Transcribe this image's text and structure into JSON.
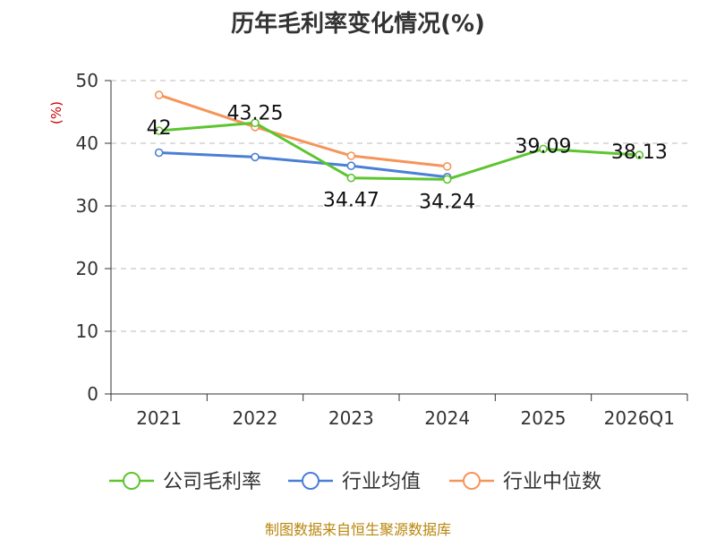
{
  "chart_data": {
    "type": "line",
    "title": "历年毛利率变化情况(%)",
    "ylabel": "(%)",
    "xlabel": "",
    "ylim": [
      0,
      50
    ],
    "yticks": [
      "0",
      "10",
      "20",
      "30",
      "40",
      "50"
    ],
    "categories": [
      "2021",
      "2022",
      "2023",
      "2024",
      "2025",
      "2026Q1"
    ],
    "series": [
      {
        "name": "公司毛利率",
        "color": "#5cc52f",
        "values": [
          42.0,
          43.25,
          34.47,
          34.24,
          39.09,
          38.13
        ],
        "labels": [
          "42",
          "43.25",
          "34.47",
          "34.24",
          "39.09",
          "38.13"
        ]
      },
      {
        "name": "行业均值",
        "color": "#4a7fd6",
        "values": [
          38.5,
          37.8,
          36.4,
          34.6,
          null,
          null
        ]
      },
      {
        "name": "行业中位数",
        "color": "#f5955a",
        "values": [
          47.7,
          42.6,
          38.0,
          36.3,
          null,
          null
        ]
      }
    ],
    "grid": true,
    "legend_position": "bottom"
  },
  "source": "制图数据来自恒生聚源数据库"
}
